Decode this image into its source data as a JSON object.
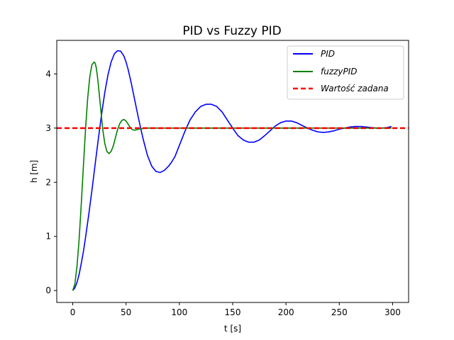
{
  "chart_data": {
    "type": "line",
    "title": "PID vs Fuzzy PID",
    "xlabel": "t [s]",
    "ylabel": "h [m]",
    "xlim": [
      -15,
      315
    ],
    "ylim": [
      -0.22,
      4.62
    ],
    "xticks": [
      0,
      50,
      100,
      150,
      200,
      250,
      300
    ],
    "yticks": [
      0,
      1,
      2,
      3,
      4
    ],
    "legend_position": "top-right",
    "grid": false,
    "series": [
      {
        "name": "PID",
        "color": "#0000ff",
        "style": "solid",
        "x": [
          0,
          2,
          4,
          6,
          8,
          10,
          12,
          15,
          18,
          21,
          24,
          27,
          30,
          33,
          36,
          39,
          42,
          45,
          48,
          50,
          52,
          55,
          58,
          62,
          66,
          70,
          74,
          78,
          82,
          86,
          90,
          93,
          96,
          100,
          105,
          110,
          115,
          120,
          125,
          130,
          135,
          140,
          145,
          150,
          155,
          160,
          165,
          170,
          175,
          180,
          185,
          190,
          195,
          200,
          205,
          210,
          215,
          220,
          225,
          230,
          235,
          240,
          245,
          250,
          255,
          260,
          265,
          270,
          275,
          280,
          285,
          290,
          295,
          299
        ],
        "y": [
          0,
          0.05,
          0.15,
          0.3,
          0.5,
          0.72,
          0.98,
          1.4,
          1.85,
          2.33,
          2.8,
          3.25,
          3.65,
          3.98,
          4.22,
          4.37,
          4.43,
          4.42,
          4.33,
          4.22,
          4.08,
          3.82,
          3.53,
          3.15,
          2.8,
          2.5,
          2.3,
          2.2,
          2.18,
          2.22,
          2.3,
          2.38,
          2.48,
          2.68,
          2.93,
          3.15,
          3.3,
          3.4,
          3.44,
          3.44,
          3.4,
          3.3,
          3.15,
          3.0,
          2.86,
          2.78,
          2.74,
          2.74,
          2.78,
          2.86,
          2.95,
          3.04,
          3.1,
          3.13,
          3.13,
          3.1,
          3.05,
          3.0,
          2.96,
          2.93,
          2.92,
          2.93,
          2.95,
          2.98,
          3.0,
          3.02,
          3.03,
          3.03,
          3.02,
          3.01,
          3.0,
          3.0,
          3.01,
          3.03
        ]
      },
      {
        "name": "fuzzyPID",
        "color": "#008000",
        "style": "solid",
        "x": [
          0,
          2,
          4,
          6,
          8,
          10,
          12,
          14,
          16,
          18,
          20,
          21,
          22,
          23,
          24,
          26,
          28,
          30,
          32,
          34,
          36,
          38,
          40,
          42,
          44,
          46,
          48,
          50,
          52,
          54,
          56,
          58,
          60,
          62,
          65,
          70,
          80,
          100,
          150,
          200,
          250,
          299
        ],
        "y": [
          0,
          0.12,
          0.45,
          0.95,
          1.6,
          2.3,
          2.98,
          3.55,
          3.95,
          4.17,
          4.22,
          4.2,
          4.12,
          3.98,
          3.8,
          3.4,
          3.0,
          2.72,
          2.57,
          2.53,
          2.57,
          2.67,
          2.82,
          2.97,
          3.08,
          3.14,
          3.16,
          3.13,
          3.07,
          3.01,
          2.97,
          2.96,
          2.97,
          2.98,
          2.99,
          3.0,
          3.0,
          3.0,
          3.0,
          3.0,
          3.0,
          3.0
        ]
      },
      {
        "name": "Wartość zadana",
        "color": "#ff0000",
        "style": "dashed",
        "x": [
          -15,
          315
        ],
        "y": [
          3,
          3
        ]
      }
    ]
  }
}
